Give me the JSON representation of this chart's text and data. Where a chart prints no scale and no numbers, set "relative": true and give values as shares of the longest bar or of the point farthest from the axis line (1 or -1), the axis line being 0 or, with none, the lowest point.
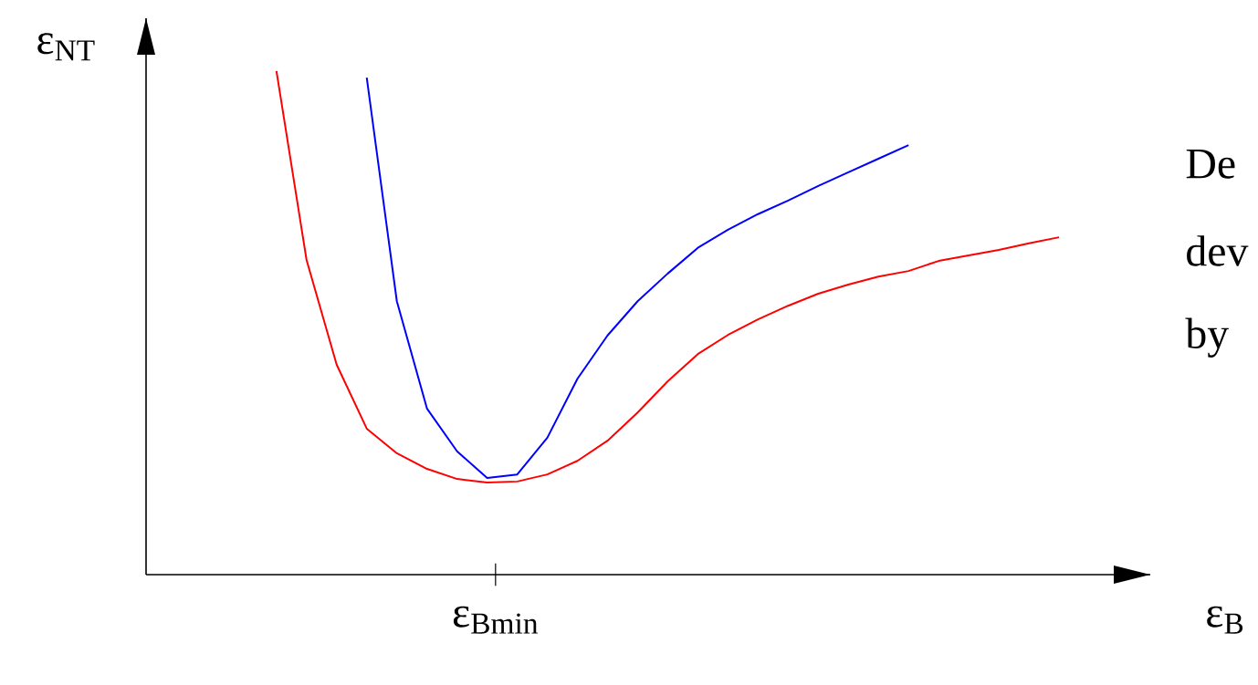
{
  "chart_data": {
    "type": "line",
    "relative": true,
    "xlabel": "ε$_{B}$",
    "ylabel": "ε$_{NT}$",
    "categories": [
      null,
      null,
      null,
      null,
      null,
      null,
      null,
      null,
      null,
      null,
      null,
      null,
      null,
      null,
      null,
      null,
      null,
      null,
      null,
      null,
      null,
      null,
      null,
      null,
      null,
      null,
      null
    ],
    "series": [
      {
        "color": "#0000ff",
        "values": [
          null,
          null,
          null,
          0.987,
          0.543,
          0.33,
          0.245,
          0.192,
          0.199,
          0.272,
          0.389,
          0.475,
          0.543,
          0.598,
          0.649,
          0.685,
          0.716,
          0.743,
          0.772,
          0.799,
          0.826,
          0.853,
          null,
          null,
          null,
          null,
          null
        ]
      },
      {
        "color": "#ff0000",
        "values": [
          1.0,
          0.625,
          0.417,
          0.29,
          0.241,
          0.21,
          0.19,
          0.183,
          0.185,
          0.199,
          0.226,
          0.266,
          0.322,
          0.384,
          0.438,
          0.476,
          0.507,
          0.534,
          0.558,
          0.576,
          0.592,
          0.603,
          0.623,
          0.634,
          0.645,
          0.658,
          0.67
        ]
      }
    ],
    "annotations": [
      "ε$_{Bmin}$",
      "De",
      "dev",
      "by"
    ],
    "marker": "none",
    "line_style": "solid"
  }
}
